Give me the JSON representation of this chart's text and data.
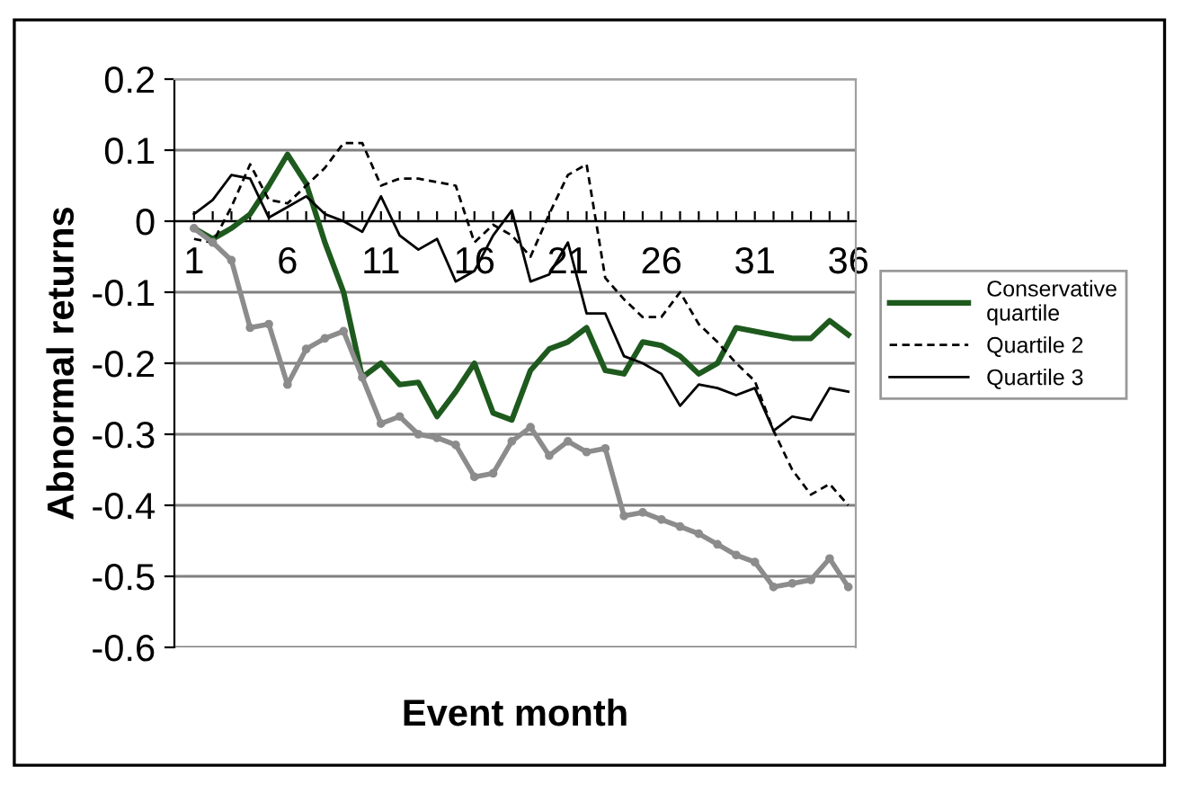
{
  "chart_data": {
    "type": "line",
    "xlabel": "Event month",
    "ylabel": "Abnormal returns",
    "categories": [
      "1",
      null,
      null,
      null,
      null,
      "6",
      null,
      null,
      null,
      null,
      "11",
      null,
      null,
      null,
      null,
      "16",
      null,
      null,
      null,
      null,
      "21",
      null,
      null,
      null,
      null,
      "26",
      null,
      null,
      null,
      null,
      "31",
      null,
      null,
      null,
      null,
      "36"
    ],
    "ylim": [
      -0.6,
      0.2
    ],
    "yticks": [
      {
        "value": -0.6,
        "label": "-0.6"
      },
      {
        "value": -0.5,
        "label": "-0.5"
      },
      {
        "value": -0.4,
        "label": "-0.4"
      },
      {
        "value": -0.3,
        "label": "-0.3"
      },
      {
        "value": -0.2,
        "label": "-0.2"
      },
      {
        "value": -0.1,
        "label": "-0.1"
      },
      0,
      0.1,
      0.2
    ],
    "grid": "y",
    "legend": "right",
    "series": [
      {
        "name": "Conservative quartile",
        "color": "#1e5a1e",
        "line_style": "solid",
        "marker": "none",
        "values": [
          -0.01,
          -0.025,
          -0.01,
          0.01,
          0.05,
          0.094,
          0.053,
          -0.03,
          -0.1,
          -0.22,
          -0.2,
          -0.23,
          -0.227,
          -0.275,
          -0.24,
          -0.2,
          -0.27,
          -0.28,
          -0.21,
          -0.18,
          -0.17,
          -0.15,
          -0.21,
          -0.215,
          -0.17,
          -0.175,
          -0.19,
          -0.215,
          -0.2,
          -0.15,
          -0.155,
          -0.16,
          -0.165,
          -0.165,
          -0.14,
          -0.16
        ]
      },
      {
        "name": "Quartile 2",
        "color": "#000000",
        "line_style": "dashed",
        "marker": "none",
        "values": [
          -0.025,
          -0.03,
          0.02,
          0.08,
          0.03,
          0.025,
          0.05,
          0.075,
          0.11,
          0.11,
          0.05,
          0.06,
          0.06,
          0.055,
          0.05,
          -0.03,
          -0.005,
          -0.02,
          -0.05,
          0.01,
          0.065,
          0.08,
          -0.08,
          -0.11,
          -0.135,
          -0.135,
          -0.1,
          -0.145,
          -0.17,
          -0.2,
          -0.225,
          -0.295,
          -0.35,
          -0.385,
          -0.37,
          -0.4
        ]
      },
      {
        "name": "Quartile 3",
        "color": "#000000",
        "line_style": "solid",
        "marker": "none",
        "values": [
          0.01,
          0.03,
          0.065,
          0.06,
          0.005,
          0.02,
          0.035,
          0.01,
          0.0,
          -0.015,
          0.035,
          -0.02,
          -0.04,
          -0.025,
          -0.085,
          -0.07,
          -0.02,
          0.015,
          -0.085,
          -0.075,
          -0.03,
          -0.13,
          -0.13,
          -0.19,
          -0.2,
          -0.215,
          -0.26,
          -0.23,
          -0.235,
          -0.245,
          -0.235,
          -0.295,
          -0.275,
          -0.28,
          -0.235,
          -0.24
        ]
      },
      {
        "color": "#8c8c8c",
        "line_style": "solid",
        "marker": "circle",
        "values": [
          -0.01,
          -0.03,
          -0.055,
          -0.15,
          -0.145,
          -0.23,
          -0.18,
          -0.165,
          -0.155,
          -0.22,
          -0.285,
          -0.275,
          -0.3,
          -0.305,
          -0.315,
          -0.36,
          -0.355,
          -0.31,
          -0.29,
          -0.33,
          -0.31,
          -0.325,
          -0.32,
          -0.415,
          -0.41,
          -0.42,
          -0.43,
          -0.44,
          -0.455,
          -0.47,
          -0.48,
          -0.515,
          -0.51,
          -0.505,
          -0.475,
          -0.515
        ]
      }
    ]
  }
}
